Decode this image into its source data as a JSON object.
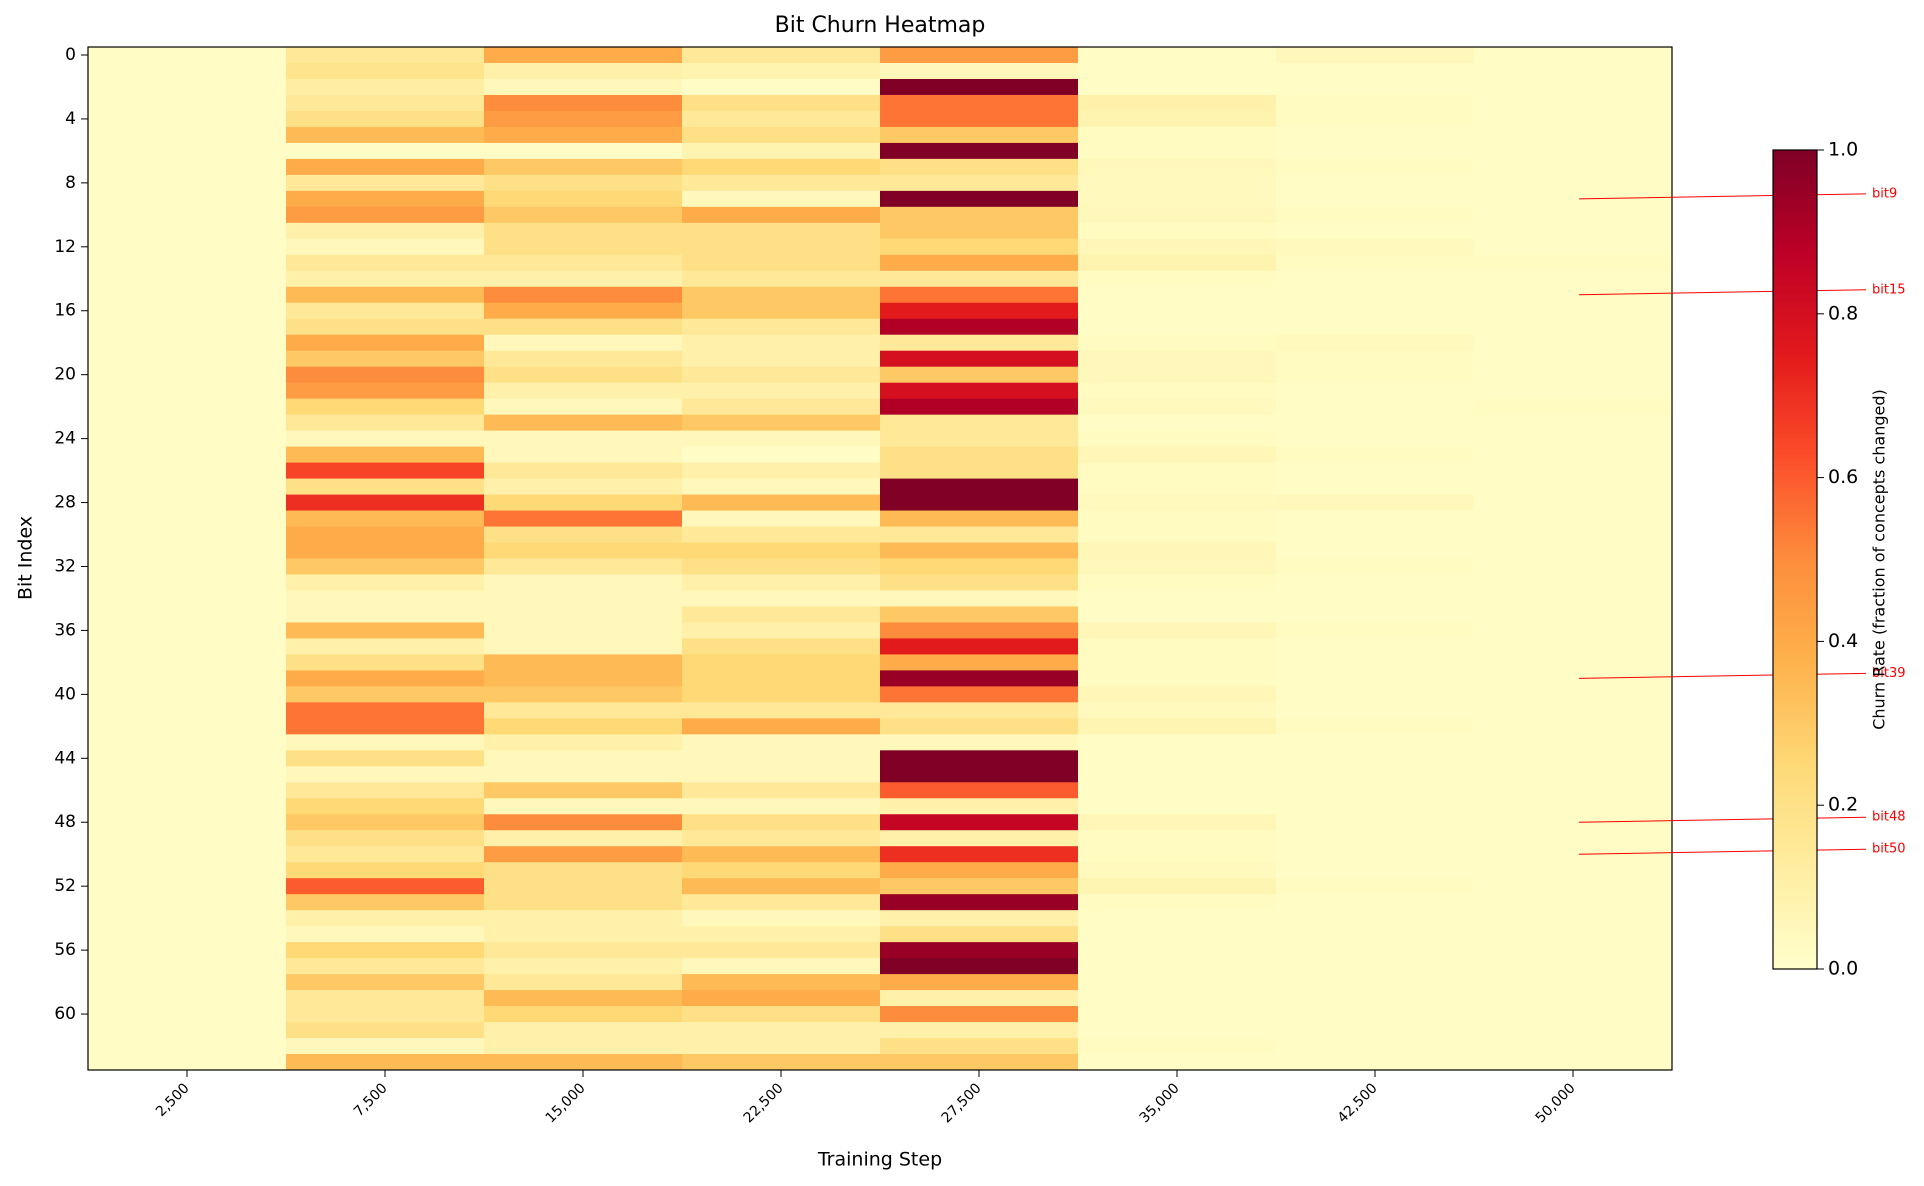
{
  "chart_data": {
    "type": "heatmap",
    "title": "Bit Churn Heatmap",
    "x_label": "Training Step",
    "y_label": "Bit Index",
    "categories": [
      "2,500",
      "7,500",
      "15,000",
      "22,500",
      "27,500",
      "35,000",
      "42,500",
      "50,000"
    ],
    "yticks": [
      0,
      4,
      8,
      12,
      16,
      20,
      24,
      28,
      32,
      36,
      40,
      44,
      48,
      52,
      56,
      60
    ],
    "colormap": "YlOrRd",
    "clim": [
      0,
      1
    ],
    "colorbar_label": "Churn Rate (fraction of concepts changed)",
    "colorbar_ticks": [
      {
        "value": 0,
        "label": "0.0"
      },
      {
        "value": 0.2,
        "label": "0.2"
      },
      {
        "value": 0.4,
        "label": "0.4"
      },
      {
        "value": 0.6,
        "label": "0.6"
      },
      {
        "value": 0.8,
        "label": "0.8"
      },
      {
        "value": 1,
        "label": "1.0"
      }
    ],
    "values": [
      [
        0.02,
        0.02,
        0.02,
        0.02,
        0.02,
        0.02,
        0.02,
        0.02,
        0.02,
        0.02,
        0.02,
        0.02,
        0.02,
        0.02,
        0.02,
        0.02,
        0.02,
        0.02,
        0.02,
        0.02,
        0.02,
        0.02,
        0.02,
        0.02,
        0.02,
        0.02,
        0.02,
        0.02,
        0.02,
        0.02,
        0.02,
        0.02,
        0.02,
        0.02,
        0.02,
        0.02,
        0.02,
        0.02,
        0.02,
        0.02,
        0.02,
        0.02,
        0.02,
        0.02,
        0.02,
        0.02,
        0.02,
        0.02,
        0.02,
        0.02,
        0.02,
        0.02,
        0.02,
        0.02,
        0.02,
        0.02,
        0.02,
        0.02,
        0.02,
        0.02,
        0.02,
        0.02,
        0.02,
        0.02
      ],
      [
        0.15,
        0.18,
        0.12,
        0.15,
        0.2,
        0.35,
        0.02,
        0.4,
        0.15,
        0.4,
        0.45,
        0.1,
        0.05,
        0.15,
        0.1,
        0.35,
        0.15,
        0.2,
        0.4,
        0.3,
        0.5,
        0.45,
        0.25,
        0.15,
        0.05,
        0.35,
        0.65,
        0.2,
        0.7,
        0.35,
        0.4,
        0.4,
        0.3,
        0.1,
        0.05,
        0.05,
        0.35,
        0.1,
        0.2,
        0.4,
        0.3,
        0.55,
        0.55,
        0.05,
        0.2,
        0.05,
        0.15,
        0.25,
        0.3,
        0.2,
        0.15,
        0.25,
        0.6,
        0.3,
        0.1,
        0.05,
        0.25,
        0.15,
        0.3,
        0.15,
        0.15,
        0.2,
        0.05,
        0.35
      ],
      [
        0.4,
        0.1,
        0.05,
        0.5,
        0.45,
        0.4,
        0.02,
        0.3,
        0.2,
        0.25,
        0.3,
        0.2,
        0.2,
        0.15,
        0.1,
        0.5,
        0.4,
        0.2,
        0.05,
        0.15,
        0.2,
        0.1,
        0.05,
        0.35,
        0.05,
        0.05,
        0.15,
        0.1,
        0.25,
        0.55,
        0.2,
        0.25,
        0.15,
        0.05,
        0.05,
        0.05,
        0.05,
        0.05,
        0.35,
        0.35,
        0.3,
        0.15,
        0.25,
        0.1,
        0.05,
        0.05,
        0.3,
        0.05,
        0.5,
        0.1,
        0.45,
        0.2,
        0.2,
        0.2,
        0.1,
        0.1,
        0.15,
        0.1,
        0.15,
        0.35,
        0.25,
        0.1,
        0.1,
        0.35
      ],
      [
        0.15,
        0.08,
        0.02,
        0.2,
        0.15,
        0.2,
        0.08,
        0.25,
        0.15,
        0.05,
        0.4,
        0.2,
        0.2,
        0.2,
        0.15,
        0.3,
        0.3,
        0.15,
        0.1,
        0.1,
        0.15,
        0.1,
        0.15,
        0.3,
        0.05,
        0.02,
        0.1,
        0.05,
        0.35,
        0.05,
        0.15,
        0.25,
        0.2,
        0.1,
        0.05,
        0.15,
        0.1,
        0.2,
        0.25,
        0.25,
        0.25,
        0.15,
        0.4,
        0.05,
        0.05,
        0.05,
        0.15,
        0.05,
        0.2,
        0.15,
        0.35,
        0.25,
        0.35,
        0.15,
        0.05,
        0.1,
        0.15,
        0.05,
        0.35,
        0.4,
        0.2,
        0.1,
        0.1,
        0.3
      ],
      [
        0.45,
        0.05,
        1.0,
        0.55,
        0.55,
        0.3,
        1.0,
        0.2,
        0.15,
        1.0,
        0.3,
        0.3,
        0.25,
        0.4,
        0.15,
        0.55,
        0.75,
        0.9,
        0.15,
        0.8,
        0.3,
        0.8,
        0.9,
        0.15,
        0.15,
        0.2,
        0.2,
        1.0,
        1.0,
        0.35,
        0.15,
        0.35,
        0.25,
        0.2,
        0.05,
        0.3,
        0.5,
        0.75,
        0.4,
        0.95,
        0.55,
        0.15,
        0.2,
        0.05,
        1.0,
        1.0,
        0.6,
        0.1,
        0.85,
        0.1,
        0.7,
        0.4,
        0.3,
        0.95,
        0.1,
        0.2,
        0.95,
        1.0,
        0.4,
        0.1,
        0.5,
        0.1,
        0.2,
        0.3
      ],
      [
        0.02,
        0.02,
        0.02,
        0.1,
        0.08,
        0.03,
        0.03,
        0.05,
        0.04,
        0.04,
        0.05,
        0.03,
        0.06,
        0.08,
        0.03,
        0.02,
        0.02,
        0.02,
        0.03,
        0.05,
        0.05,
        0.03,
        0.04,
        0.02,
        0.03,
        0.06,
        0.03,
        0.03,
        0.04,
        0.03,
        0.03,
        0.06,
        0.05,
        0.03,
        0.02,
        0.02,
        0.06,
        0.03,
        0.03,
        0.03,
        0.06,
        0.04,
        0.07,
        0.02,
        0.02,
        0.02,
        0.02,
        0.02,
        0.06,
        0.03,
        0.03,
        0.04,
        0.07,
        0.03,
        0.02,
        0.02,
        0.02,
        0.02,
        0.02,
        0.02,
        0.02,
        0.02,
        0.03,
        0.02
      ],
      [
        0.05,
        0.02,
        0.02,
        0.03,
        0.03,
        0.02,
        0.02,
        0.03,
        0.02,
        0.02,
        0.03,
        0.02,
        0.04,
        0.03,
        0.02,
        0.02,
        0.02,
        0.02,
        0.04,
        0.03,
        0.03,
        0.02,
        0.02,
        0.02,
        0.02,
        0.03,
        0.02,
        0.02,
        0.05,
        0.02,
        0.02,
        0.02,
        0.03,
        0.02,
        0.02,
        0.02,
        0.03,
        0.02,
        0.02,
        0.02,
        0.02,
        0.02,
        0.03,
        0.02,
        0.02,
        0.02,
        0.02,
        0.02,
        0.02,
        0.02,
        0.02,
        0.02,
        0.03,
        0.02,
        0.02,
        0.02,
        0.02,
        0.02,
        0.02,
        0.02,
        0.02,
        0.02,
        0.02,
        0.02
      ],
      [
        0.02,
        0.02,
        0.02,
        0.02,
        0.02,
        0.02,
        0.02,
        0.02,
        0.02,
        0.02,
        0.02,
        0.02,
        0.02,
        0.03,
        0.02,
        0.02,
        0.02,
        0.02,
        0.02,
        0.02,
        0.02,
        0.02,
        0.03,
        0.02,
        0.02,
        0.02,
        0.02,
        0.02,
        0.02,
        0.02,
        0.02,
        0.02,
        0.02,
        0.02,
        0.02,
        0.02,
        0.02,
        0.02,
        0.02,
        0.02,
        0.02,
        0.02,
        0.02,
        0.02,
        0.02,
        0.02,
        0.02,
        0.02,
        0.02,
        0.02,
        0.02,
        0.02,
        0.02,
        0.02,
        0.02,
        0.02,
        0.02,
        0.02,
        0.02,
        0.02,
        0.02,
        0.02,
        0.02,
        0.02
      ]
    ],
    "annotations": [
      {
        "text": "bit9",
        "row": 9
      },
      {
        "text": "bit15",
        "row": 15
      },
      {
        "text": "bit39",
        "row": 39
      },
      {
        "text": "bit48",
        "row": 48
      },
      {
        "text": "bit50",
        "row": 50
      }
    ],
    "annotation_color": "#ff0000"
  }
}
